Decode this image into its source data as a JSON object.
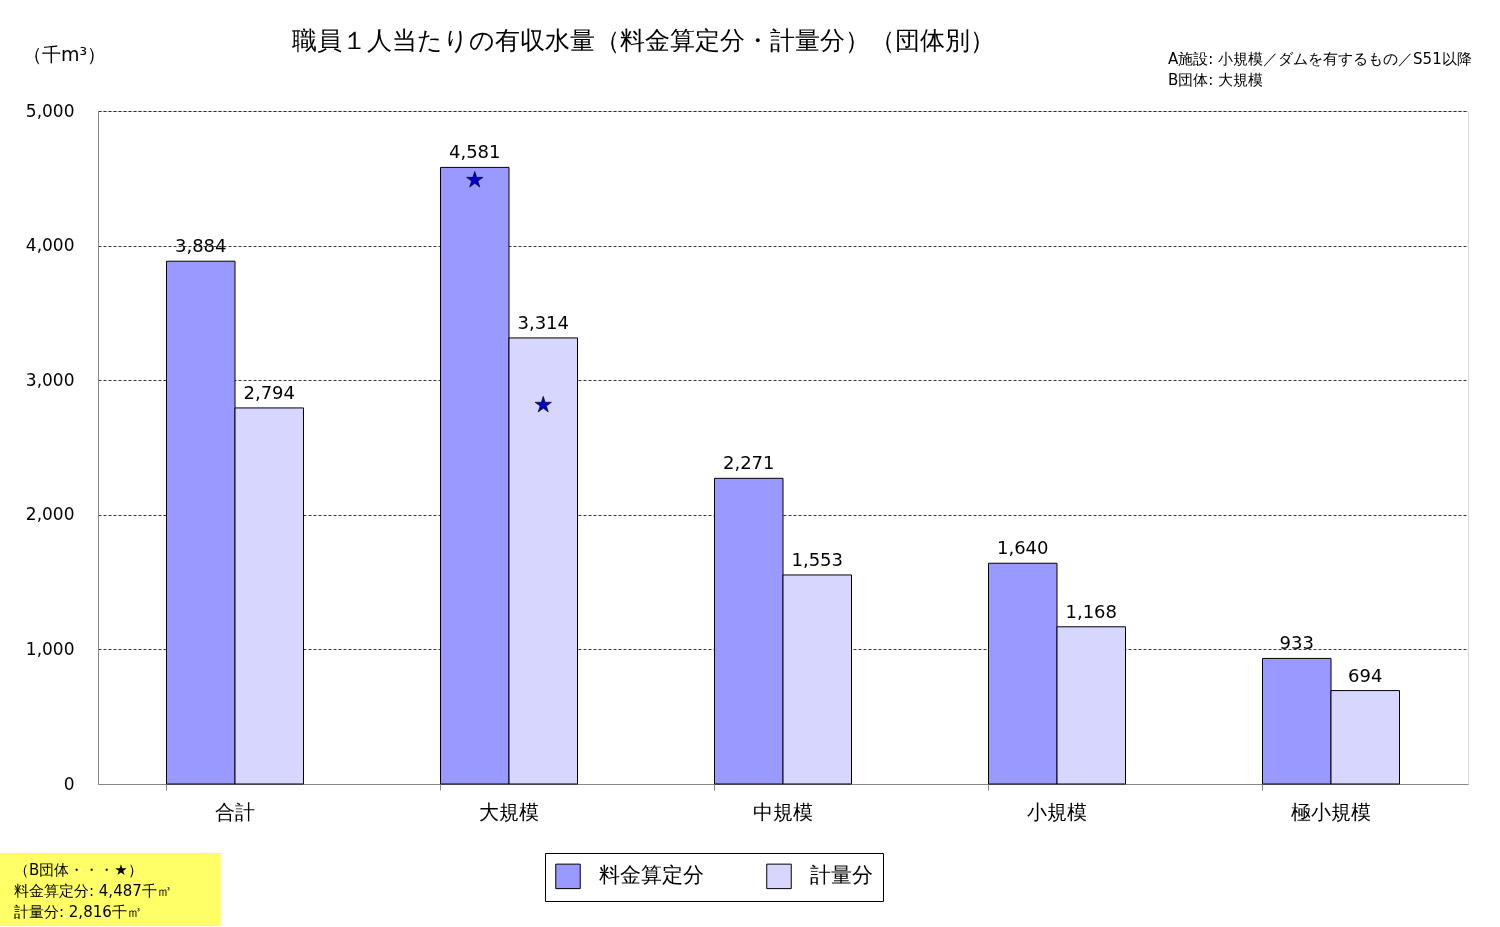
{
  "chart_data": {
    "type": "bar",
    "title": "職員１人当たりの有収水量（料金算定分・計量分）（団体別）",
    "ylabel": "（千m³）",
    "categories": [
      "合計",
      "大規模",
      "中規模",
      "小規模",
      "極小規模"
    ],
    "series": [
      {
        "name": "料金算定分",
        "color": "#9999ff",
        "values": [
          3884,
          4581,
          2271,
          1640,
          933
        ],
        "value_labels": [
          "3,884",
          "4,581",
          "2,271",
          "1,640",
          "933"
        ]
      },
      {
        "name": "計量分",
        "color": "#d6d6ff",
        "values": [
          2794,
          3314,
          1553,
          1168,
          694
        ],
        "value_labels": [
          "2,794",
          "3,314",
          "1,553",
          "1,168",
          "694"
        ]
      },
      {
        "type": "scatter",
        "color": "#0000cc",
        "marker": "star",
        "x": [
          "大規模"
        ],
        "values": [
          4487
        ]
      },
      {
        "type": "scatter",
        "color": "#0000cc",
        "marker": "star",
        "x": [
          "大規模"
        ],
        "values": [
          2816
        ]
      }
    ],
    "ylim": [
      0,
      5000
    ],
    "yticks": [
      0,
      {
        "value": 1000,
        "label": "1,000"
      },
      {
        "value": 2000,
        "label": "2,000"
      },
      {
        "value": 3000,
        "label": "3,000"
      },
      {
        "value": 4000,
        "label": "4,000"
      },
      {
        "value": 5000,
        "label": "5,000"
      }
    ],
    "grid": "y",
    "legend": "bottom",
    "annotations": [
      "A施設: 小規模／ダムを有するもの／S51以降",
      "B団体: 大規模",
      "（B団体・・・★）",
      "料金算定分: 4,487千㎥",
      "計量分: 2,816千㎥"
    ]
  }
}
